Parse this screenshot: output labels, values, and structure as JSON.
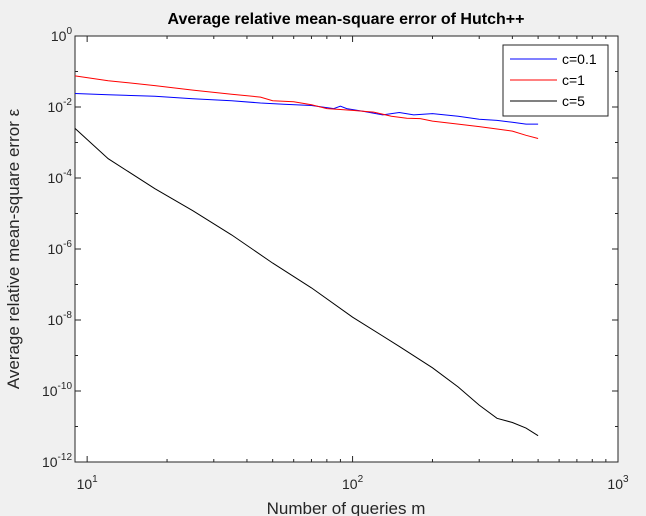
{
  "chart_data": {
    "type": "line",
    "title": "Average relative mean-square error of Hutch++",
    "xlabel": "Number of queries m",
    "ylabel": "Average relative mean-square error ε",
    "xscale": "log",
    "yscale": "log",
    "xlim": [
      9,
      1000
    ],
    "ylim": [
      1e-12,
      1
    ],
    "grid": false,
    "legend_position": "top-right",
    "x_ticks": [
      {
        "base": "10",
        "exp": "1",
        "value": 10
      },
      {
        "base": "10",
        "exp": "2",
        "value": 100
      },
      {
        "base": "10",
        "exp": "3",
        "value": 1000
      }
    ],
    "y_ticks": [
      {
        "base": "10",
        "exp": "0",
        "value": 1
      },
      {
        "base": "10",
        "exp": "-2",
        "value": 0.01
      },
      {
        "base": "10",
        "exp": "-4",
        "value": 0.0001
      },
      {
        "base": "10",
        "exp": "-6",
        "value": 1e-06
      },
      {
        "base": "10",
        "exp": "-8",
        "value": 1e-08
      },
      {
        "base": "10",
        "exp": "-10",
        "value": 1e-10
      },
      {
        "base": "10",
        "exp": "-12",
        "value": 1e-12
      }
    ],
    "series": [
      {
        "name": "c=0.1",
        "color": "#0000ff",
        "x": [
          9,
          12,
          18,
          25,
          35,
          45,
          55,
          70,
          85,
          90,
          95,
          110,
          130,
          150,
          170,
          200,
          250,
          300,
          350,
          400,
          450,
          500
        ],
        "y": [
          0.024,
          0.022,
          0.02,
          0.017,
          0.015,
          0.013,
          0.012,
          0.011,
          0.009,
          0.0105,
          0.009,
          0.0075,
          0.006,
          0.007,
          0.006,
          0.0065,
          0.0055,
          0.0045,
          0.0042,
          0.0037,
          0.0033,
          0.0033
        ]
      },
      {
        "name": "c=1",
        "color": "#ff0000",
        "x": [
          9,
          12,
          18,
          25,
          35,
          45,
          50,
          60,
          70,
          80,
          90,
          100,
          120,
          140,
          160,
          180,
          200,
          250,
          300,
          350,
          400,
          450,
          500
        ],
        "y": [
          0.075,
          0.055,
          0.04,
          0.03,
          0.023,
          0.019,
          0.015,
          0.014,
          0.0115,
          0.009,
          0.0085,
          0.008,
          0.0072,
          0.0055,
          0.0048,
          0.0047,
          0.004,
          0.0033,
          0.0028,
          0.0024,
          0.0021,
          0.0016,
          0.0013
        ]
      },
      {
        "name": "c=5",
        "color": "#000000",
        "x": [
          9,
          12,
          18,
          25,
          35,
          50,
          70,
          100,
          150,
          200,
          250,
          300,
          350,
          400,
          450,
          500
        ],
        "y": [
          0.0025,
          0.00035,
          5e-05,
          1.2e-05,
          2.5e-06,
          4e-07,
          8e-08,
          1.2e-08,
          1.8e-09,
          4.5e-10,
          1.3e-10,
          4e-11,
          1.7e-11,
          1.3e-11,
          9e-12,
          5.5e-12
        ]
      }
    ]
  }
}
